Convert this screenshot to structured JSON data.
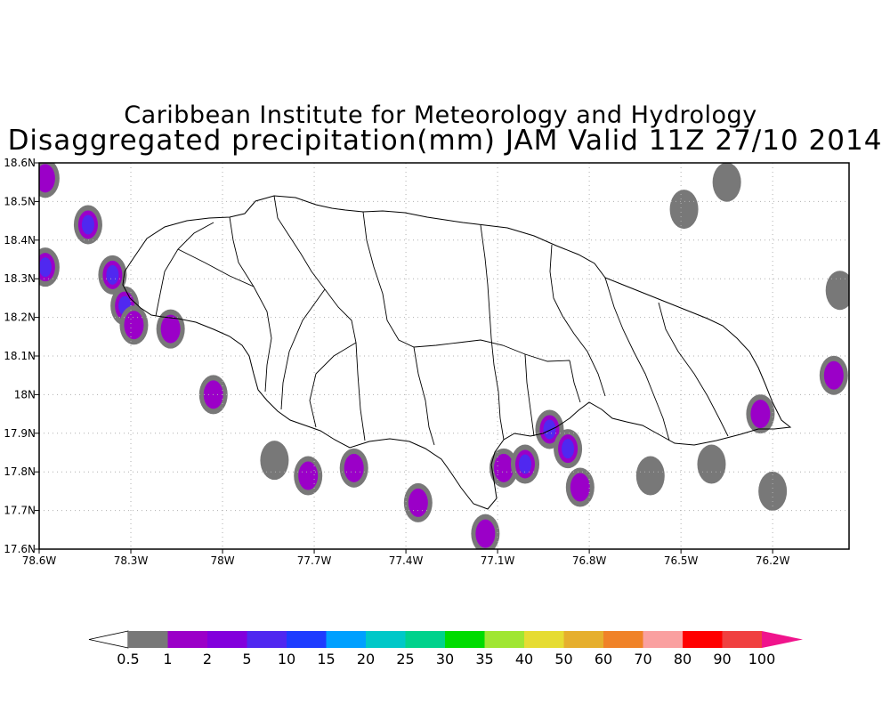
{
  "title_line1": "Caribbean Institute for Meteorology and Hydrology",
  "title_line2": "Disaggregated precipitation(mm) JAM Valid 11Z 27/10 2014",
  "map": {
    "lon_min": -78.6,
    "lon_max": -75.95,
    "lat_min": 17.6,
    "lat_max": 18.6,
    "x_ticks": [
      {
        "lon": -78.6,
        "label": "78.6W"
      },
      {
        "lon": -78.3,
        "label": "78.3W"
      },
      {
        "lon": -78.0,
        "label": "78W"
      },
      {
        "lon": -77.7,
        "label": "77.7W"
      },
      {
        "lon": -77.4,
        "label": "77.4W"
      },
      {
        "lon": -77.1,
        "label": "77.1W"
      },
      {
        "lon": -76.8,
        "label": "76.8W"
      },
      {
        "lon": -76.5,
        "label": "76.5W"
      },
      {
        "lon": -76.2,
        "label": "76.2W"
      }
    ],
    "y_ticks": [
      {
        "lat": 17.6,
        "label": "17.6N"
      },
      {
        "lat": 17.7,
        "label": "17.7N"
      },
      {
        "lat": 17.8,
        "label": "17.8N"
      },
      {
        "lat": 17.9,
        "label": "17.9N"
      },
      {
        "lat": 18.0,
        "label": "18N"
      },
      {
        "lat": 18.1,
        "label": "18.1N"
      },
      {
        "lat": 18.2,
        "label": "18.2N"
      },
      {
        "lat": 18.3,
        "label": "18.3N"
      },
      {
        "lat": 18.4,
        "label": "18.4N"
      },
      {
        "lat": 18.5,
        "label": "18.5N"
      },
      {
        "lat": 18.6,
        "label": "18.6N"
      }
    ],
    "grid": true,
    "precip_cells": [
      {
        "lon": -78.58,
        "lat": 18.56,
        "level": 2
      },
      {
        "lon": -78.58,
        "lat": 18.33,
        "level": 3
      },
      {
        "lon": -78.44,
        "lat": 18.44,
        "level": 3
      },
      {
        "lon": -78.36,
        "lat": 18.31,
        "level": 3
      },
      {
        "lon": -78.32,
        "lat": 18.23,
        "level": 3
      },
      {
        "lon": -78.29,
        "lat": 18.18,
        "level": 2
      },
      {
        "lon": -78.17,
        "lat": 18.17,
        "level": 2
      },
      {
        "lon": -78.03,
        "lat": 18.0,
        "level": 2
      },
      {
        "lon": -77.83,
        "lat": 17.83,
        "level": 1
      },
      {
        "lon": -77.72,
        "lat": 17.79,
        "level": 2
      },
      {
        "lon": -77.57,
        "lat": 17.81,
        "level": 2
      },
      {
        "lon": -77.36,
        "lat": 17.72,
        "level": 2
      },
      {
        "lon": -77.14,
        "lat": 17.64,
        "level": 2
      },
      {
        "lon": -77.08,
        "lat": 17.81,
        "level": 2
      },
      {
        "lon": -77.01,
        "lat": 17.82,
        "level": 3
      },
      {
        "lon": -76.93,
        "lat": 17.91,
        "level": 3
      },
      {
        "lon": -76.87,
        "lat": 17.86,
        "level": 3
      },
      {
        "lon": -76.83,
        "lat": 17.76,
        "level": 2
      },
      {
        "lon": -76.24,
        "lat": 17.95,
        "level": 2
      },
      {
        "lon": -76.2,
        "lat": 17.75,
        "level": 1
      },
      {
        "lon": -76.0,
        "lat": 18.05,
        "level": 2
      },
      {
        "lon": -76.4,
        "lat": 17.82,
        "level": 1
      },
      {
        "lon": -76.6,
        "lat": 17.79,
        "level": 1
      },
      {
        "lon": -76.35,
        "lat": 18.55,
        "level": 1
      },
      {
        "lon": -76.49,
        "lat": 18.48,
        "level": 1
      },
      {
        "lon": -75.98,
        "lat": 18.27,
        "level": 1
      }
    ]
  },
  "colorbar": {
    "labels": [
      "0.5",
      "1",
      "2",
      "5",
      "10",
      "15",
      "20",
      "25",
      "30",
      "35",
      "40",
      "50",
      "60",
      "70",
      "80",
      "90",
      "100"
    ],
    "colors": [
      "#787878",
      "#9b00c8",
      "#8200dc",
      "#5028f0",
      "#1e3cff",
      "#00a0ff",
      "#00c8c8",
      "#00d28c",
      "#00dc00",
      "#a0e632",
      "#e6dc32",
      "#e6af2d",
      "#f08228",
      "#faa0a0",
      "#ff0000",
      "#f04040"
    ],
    "low_color": "#ffffff",
    "high_color": "#f0148c"
  }
}
